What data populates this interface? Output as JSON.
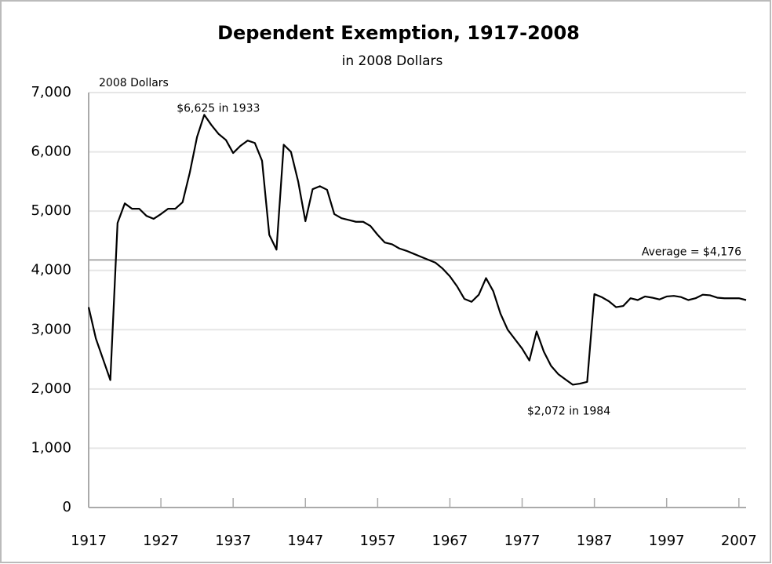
{
  "chart_data": {
    "type": "line",
    "title": "Dependent Exemption, 1917-2008",
    "subtitle": "in 2008 Dollars",
    "y_label": "2008 Dollars",
    "x": [
      1917,
      1918,
      1919,
      1920,
      1921,
      1922,
      1923,
      1924,
      1925,
      1926,
      1927,
      1928,
      1929,
      1930,
      1931,
      1932,
      1933,
      1934,
      1935,
      1936,
      1937,
      1938,
      1939,
      1940,
      1941,
      1942,
      1943,
      1944,
      1945,
      1946,
      1947,
      1948,
      1949,
      1950,
      1951,
      1952,
      1953,
      1954,
      1955,
      1956,
      1957,
      1958,
      1959,
      1960,
      1961,
      1962,
      1963,
      1964,
      1965,
      1966,
      1967,
      1968,
      1969,
      1970,
      1971,
      1972,
      1973,
      1974,
      1975,
      1976,
      1977,
      1978,
      1979,
      1980,
      1981,
      1982,
      1983,
      1984,
      1985,
      1986,
      1987,
      1988,
      1989,
      1990,
      1991,
      1992,
      1993,
      1994,
      1995,
      1996,
      1997,
      1998,
      1999,
      2000,
      2001,
      2002,
      2003,
      2004,
      2005,
      2006,
      2007,
      2008
    ],
    "series": [
      {
        "name": "Dependent Exemption",
        "color": "#000000",
        "values": [
          3380,
          2850,
          2500,
          2150,
          4800,
          5130,
          5040,
          5040,
          4920,
          4870,
          4950,
          5040,
          5040,
          5150,
          5650,
          6250,
          6625,
          6450,
          6300,
          6200,
          5980,
          6100,
          6190,
          6150,
          5850,
          4600,
          4350,
          6120,
          6000,
          5500,
          4830,
          5370,
          5420,
          5360,
          4950,
          4880,
          4850,
          4820,
          4820,
          4750,
          4600,
          4470,
          4440,
          4370,
          4330,
          4280,
          4230,
          4180,
          4130,
          4030,
          3900,
          3730,
          3520,
          3470,
          3590,
          3870,
          3650,
          3270,
          3000,
          2840,
          2680,
          2480,
          2970,
          2630,
          2390,
          2250,
          2160,
          2072,
          2090,
          2120,
          3600,
          3550,
          3480,
          3380,
          3400,
          3530,
          3500,
          3560,
          3540,
          3510,
          3560,
          3570,
          3550,
          3500,
          3530,
          3590,
          3580,
          3540,
          3530,
          3530,
          3530,
          3500
        ]
      }
    ],
    "xlim": [
      1917,
      2008
    ],
    "xticks": [
      1917,
      1927,
      1937,
      1947,
      1957,
      1967,
      1977,
      1987,
      1997,
      2007
    ],
    "ylim": [
      0,
      7000
    ],
    "yticks": [
      0,
      {
        "value": 1000,
        "label": "1,000"
      },
      {
        "value": 2000,
        "label": "2,000"
      },
      {
        "value": 3000,
        "label": "3,000"
      },
      {
        "value": 4000,
        "label": "4,000"
      },
      {
        "value": 5000,
        "label": "5,000"
      },
      {
        "value": 6000,
        "label": "6,000"
      },
      {
        "value": 7000,
        "label": "7,000"
      }
    ],
    "grid": true,
    "average": 4176,
    "average_label": "Average = $4,176",
    "annotations": [
      {
        "text": "$6,625 in 1933",
        "x": 1933,
        "y": 6625,
        "position": "above"
      },
      {
        "text": "$2,072 in 1984",
        "x": 1984,
        "y": 2072,
        "position": "below"
      }
    ]
  }
}
